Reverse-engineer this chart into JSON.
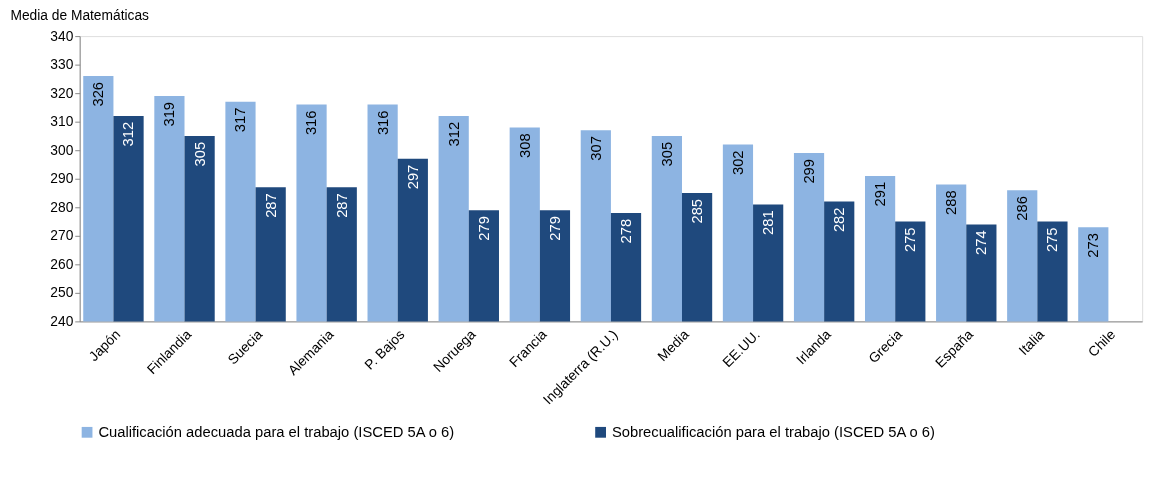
{
  "chart_data": {
    "type": "bar",
    "ylabel": "Media de Matemáticas",
    "categories": [
      "Japón",
      "Finlandia",
      "Suecia",
      "Alemania",
      "P. Bajos",
      "Noruega",
      "Francia",
      "Inglaterra (R.U.)",
      "Media",
      "EE.UU.",
      "Irlanda",
      "Grecia",
      "España",
      "Italia",
      "Chile"
    ],
    "series": [
      {
        "name": "Cualificación adecuada para el trabajo (ISCED 5A o 6)",
        "color": "#8db4e2",
        "values": [
          326,
          319,
          317,
          316,
          316,
          312,
          308,
          307,
          305,
          302,
          299,
          291,
          288,
          286,
          273
        ]
      },
      {
        "name": "Sobrecualificación para el trabajo (ISCED 5A o 6)",
        "color": "#1f497d",
        "values": [
          312,
          305,
          287,
          287,
          297,
          279,
          279,
          278,
          285,
          281,
          282,
          275,
          274,
          275,
          null
        ]
      }
    ],
    "ylim": [
      240,
      340
    ],
    "yticks": [
      240,
      250,
      260,
      270,
      280,
      290,
      300,
      310,
      320,
      330,
      340
    ],
    "data_labels": true,
    "legend": "bottom",
    "grid": false
  }
}
